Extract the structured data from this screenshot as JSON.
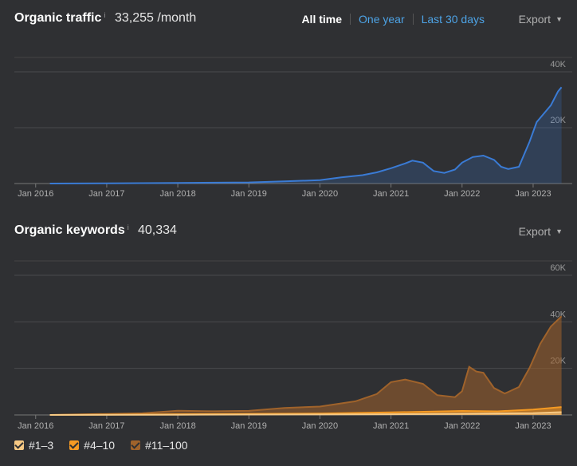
{
  "traffic": {
    "title": "Organic traffic",
    "info": "i",
    "value": "33,255 /month",
    "tabs": [
      {
        "label": "All time",
        "active": true
      },
      {
        "label": "One year",
        "active": false
      },
      {
        "label": "Last 30 days",
        "active": false
      }
    ],
    "export_label": "Export",
    "export_caret": "▼"
  },
  "keywords": {
    "title": "Organic keywords",
    "info": "i",
    "value": "40,334",
    "export_label": "Export",
    "export_caret": "▼"
  },
  "legend": [
    {
      "label": "#1–3",
      "color": "#f7c984"
    },
    {
      "label": "#4–10",
      "color": "#f59a23"
    },
    {
      "label": "#11–100",
      "color": "#a0632b"
    }
  ],
  "chart_data": [
    {
      "type": "area",
      "title": "Organic traffic",
      "x_ticks": [
        "Jan 2016",
        "Jan 2017",
        "Jan 2018",
        "Jan 2019",
        "Jan 2020",
        "Jan 2021",
        "Jan 2022",
        "Jan 2023"
      ],
      "y_ticks": [
        "20K",
        "40K"
      ],
      "ylim": [
        0,
        40000
      ],
      "grid": true,
      "series": [
        {
          "color": "#3a7bd5",
          "points": [
            [
              2016.2,
              0
            ],
            [
              2017.0,
              100
            ],
            [
              2018.0,
              200
            ],
            [
              2019.0,
              400
            ],
            [
              2019.5,
              800
            ],
            [
              2020.0,
              1200
            ],
            [
              2020.3,
              2200
            ],
            [
              2020.6,
              3000
            ],
            [
              2020.8,
              4000
            ],
            [
              2021.0,
              5500
            ],
            [
              2021.2,
              7200
            ],
            [
              2021.3,
              8200
            ],
            [
              2021.45,
              7500
            ],
            [
              2021.6,
              4500
            ],
            [
              2021.75,
              3800
            ],
            [
              2021.9,
              5000
            ],
            [
              2022.0,
              7500
            ],
            [
              2022.15,
              9500
            ],
            [
              2022.3,
              10000
            ],
            [
              2022.45,
              8500
            ],
            [
              2022.55,
              6000
            ],
            [
              2022.65,
              5200
            ],
            [
              2022.8,
              6000
            ],
            [
              2022.95,
              15000
            ],
            [
              2023.05,
              22000
            ],
            [
              2023.25,
              28000
            ],
            [
              2023.35,
              33000
            ],
            [
              2023.4,
              34500
            ]
          ]
        }
      ]
    },
    {
      "type": "area",
      "title": "Organic keywords",
      "x_ticks": [
        "Jan 2016",
        "Jan 2017",
        "Jan 2018",
        "Jan 2019",
        "Jan 2020",
        "Jan 2021",
        "Jan 2022",
        "Jan 2023"
      ],
      "y_ticks": [
        "20K",
        "40K",
        "60K"
      ],
      "ylim": [
        0,
        60000
      ],
      "grid": true,
      "stacked": true,
      "series": [
        {
          "name": "#1–3",
          "color": "#f7c984",
          "points": [
            [
              2016.2,
              0
            ],
            [
              2018.0,
              100
            ],
            [
              2020.0,
              200
            ],
            [
              2021.0,
              300
            ],
            [
              2022.0,
              500
            ],
            [
              2023.0,
              800
            ],
            [
              2023.4,
              1200
            ]
          ]
        },
        {
          "name": "#4–10",
          "color": "#f59a23",
          "points": [
            [
              2016.2,
              0
            ],
            [
              2018.0,
              200
            ],
            [
              2020.0,
              400
            ],
            [
              2021.0,
              800
            ],
            [
              2022.0,
              1200
            ],
            [
              2022.5,
              900
            ],
            [
              2023.0,
              1500
            ],
            [
              2023.4,
              2200
            ]
          ]
        },
        {
          "name": "#11–100",
          "color": "#a0632b",
          "points": [
            [
              2016.2,
              0
            ],
            [
              2017.0,
              300
            ],
            [
              2017.5,
              500
            ],
            [
              2018.0,
              1500
            ],
            [
              2018.5,
              1200
            ],
            [
              2019.0,
              1300
            ],
            [
              2019.5,
              2500
            ],
            [
              2020.0,
              3000
            ],
            [
              2020.5,
              5000
            ],
            [
              2020.8,
              8000
            ],
            [
              2021.0,
              13000
            ],
            [
              2021.2,
              14000
            ],
            [
              2021.45,
              12000
            ],
            [
              2021.65,
              7000
            ],
            [
              2021.9,
              6000
            ],
            [
              2022.0,
              8500
            ],
            [
              2022.1,
              19000
            ],
            [
              2022.2,
              17000
            ],
            [
              2022.3,
              16500
            ],
            [
              2022.45,
              10000
            ],
            [
              2022.6,
              7500
            ],
            [
              2022.8,
              10000
            ],
            [
              2022.95,
              18000
            ],
            [
              2023.1,
              28000
            ],
            [
              2023.25,
              35000
            ],
            [
              2023.4,
              39000
            ]
          ]
        }
      ]
    }
  ]
}
